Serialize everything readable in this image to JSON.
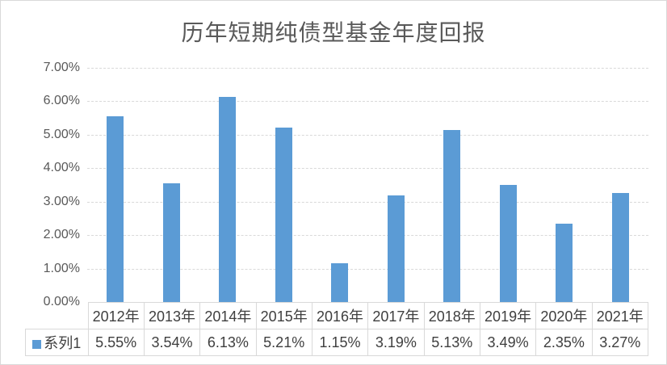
{
  "chart_data": {
    "type": "bar",
    "title": "历年短期纯债型基金年度回报",
    "categories": [
      "2012年",
      "2013年",
      "2014年",
      "2015年",
      "2016年",
      "2017年",
      "2018年",
      "2019年",
      "2020年",
      "2021年"
    ],
    "series": [
      {
        "name": "系列1",
        "values": [
          5.55,
          3.54,
          6.13,
          5.21,
          1.15,
          3.19,
          5.13,
          3.49,
          2.35,
          3.27
        ]
      }
    ],
    "value_labels": [
      "5.55%",
      "3.54%",
      "6.13%",
      "5.21%",
      "1.15%",
      "3.19%",
      "5.13%",
      "3.49%",
      "2.35%",
      "3.27%"
    ],
    "xlabel": "",
    "ylabel": "",
    "ylim": [
      0,
      7
    ],
    "y_tick_labels": [
      "0.00%",
      "1.00%",
      "2.00%",
      "3.00%",
      "4.00%",
      "5.00%",
      "6.00%",
      "7.00%"
    ],
    "grid": true,
    "legend_position": "bottom-table-left",
    "colors": {
      "bar": "#5b9bd5",
      "gridline": "#d9d9d9",
      "title_text": "#595959",
      "axis_text": "#595959",
      "table_text": "#3f3f3f",
      "table_border": "#d9d9d9",
      "background": "#ffffff"
    }
  }
}
